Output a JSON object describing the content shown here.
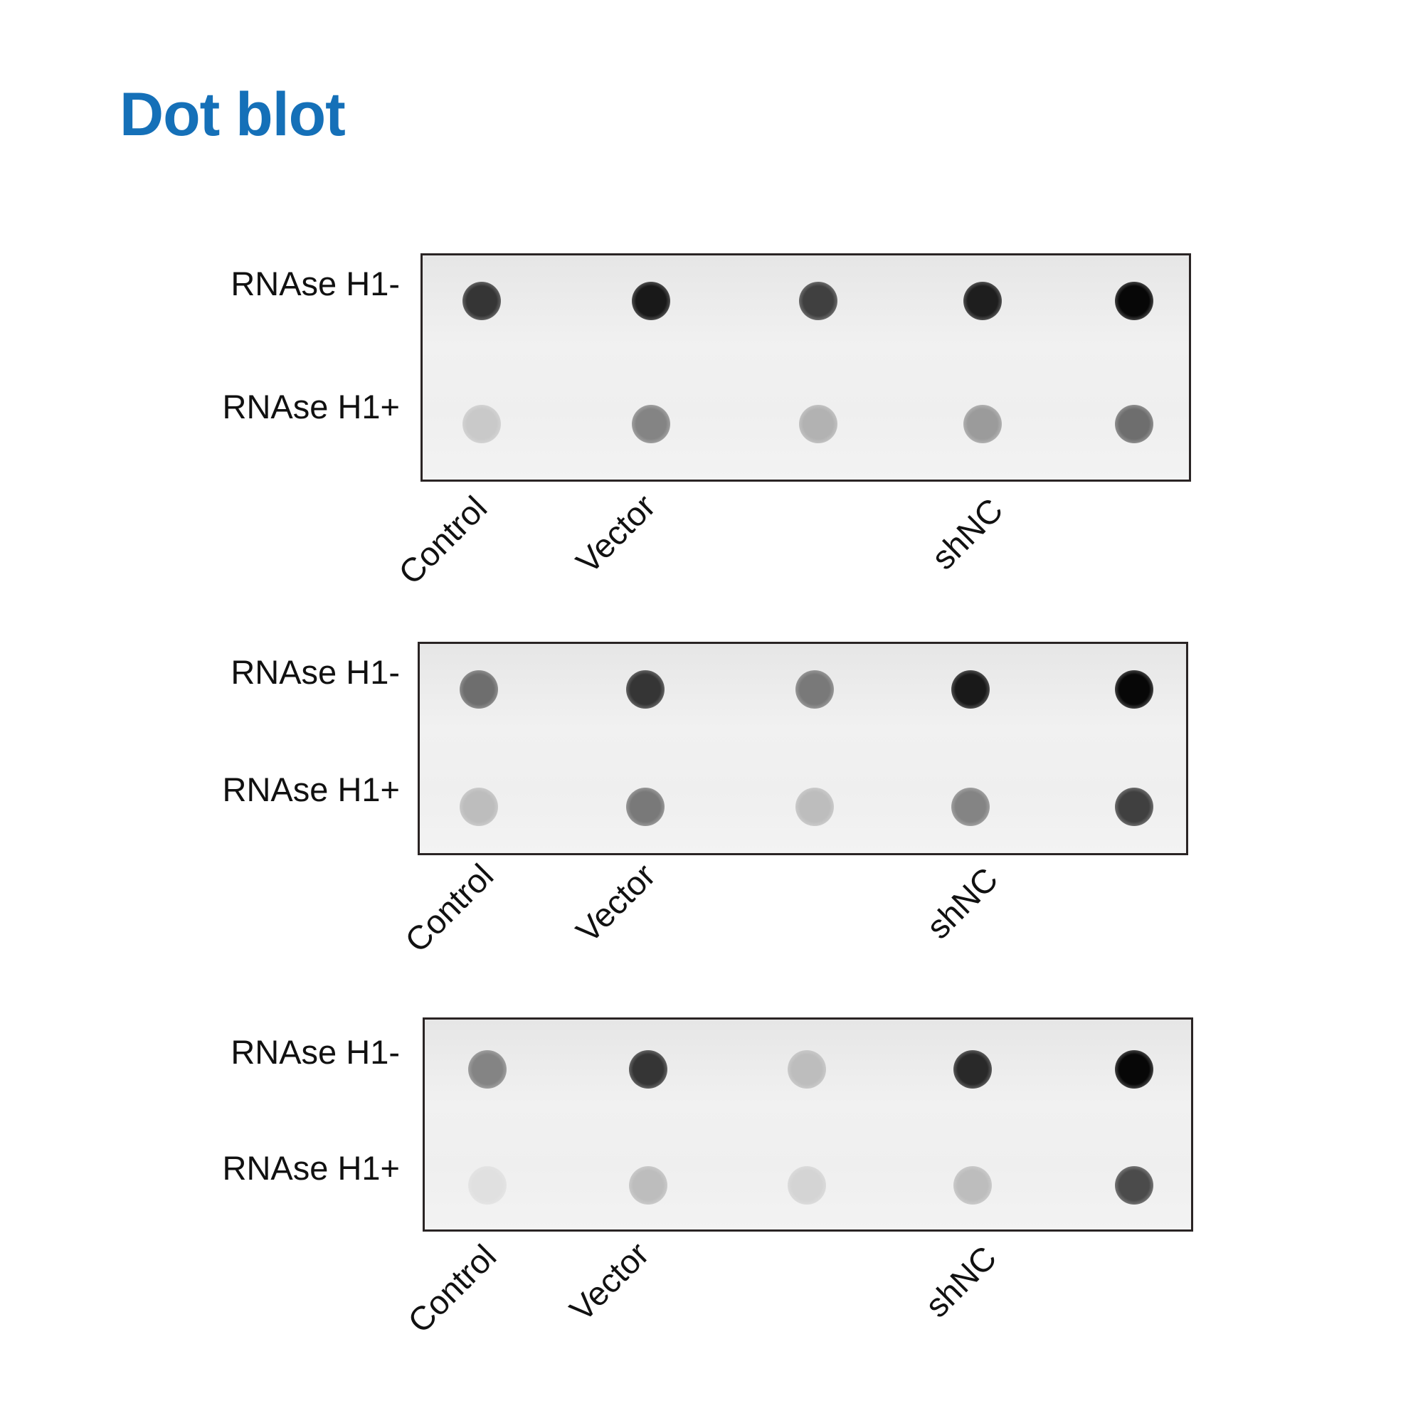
{
  "title": "Dot blot",
  "row_labels": [
    "RNAse H1-",
    "RNAse H1+"
  ],
  "column_labels": [
    "Control",
    "Vector",
    "shNC"
  ],
  "title_color": "#1570b8",
  "panels": [
    {
      "dots": [
        [
          0.8,
          0.92,
          0.75,
          0.9,
          1.0
        ],
        [
          0.15,
          0.45,
          0.25,
          0.35,
          0.55
        ]
      ]
    },
    {
      "dots": [
        [
          0.55,
          0.8,
          0.5,
          0.92,
          1.0
        ],
        [
          0.2,
          0.5,
          0.2,
          0.45,
          0.75
        ]
      ]
    },
    {
      "dots": [
        [
          0.45,
          0.8,
          0.2,
          0.85,
          1.0
        ],
        [
          0.05,
          0.2,
          0.1,
          0.2,
          0.7
        ]
      ]
    }
  ]
}
